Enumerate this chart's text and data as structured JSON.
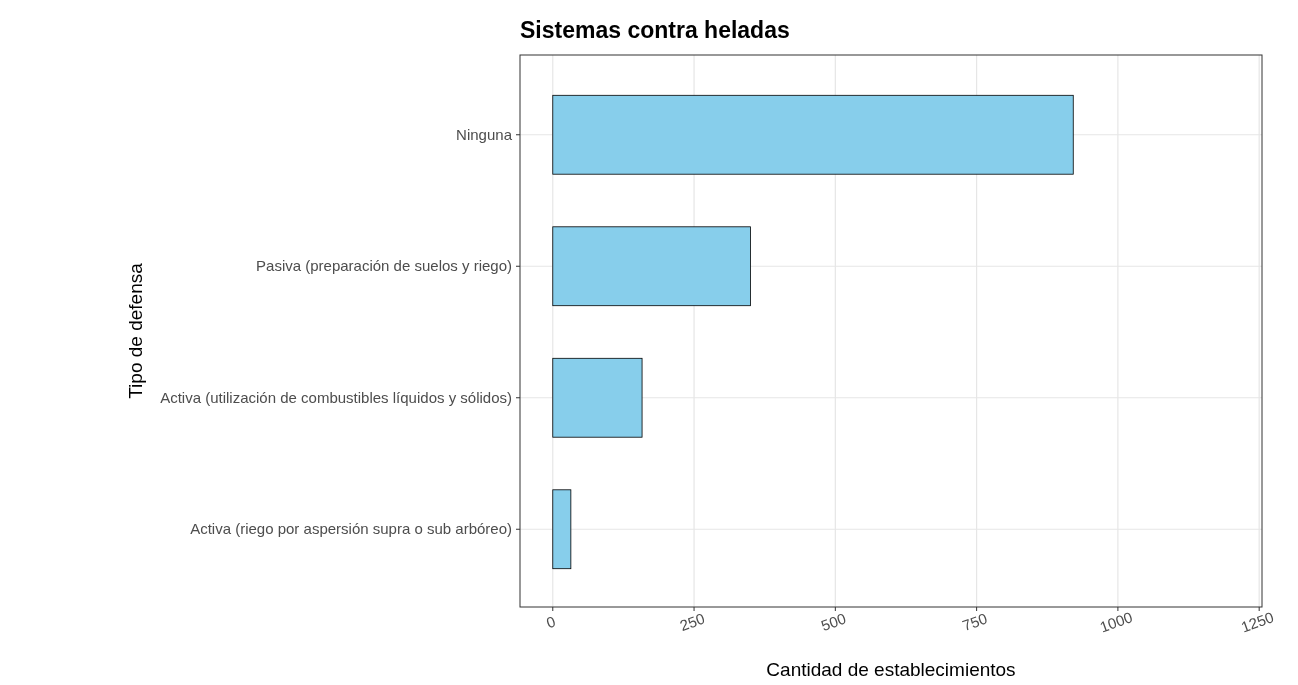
{
  "chart_data": {
    "type": "bar",
    "orientation": "horizontal",
    "title": "Sistemas contra heladas",
    "xlabel": "Cantidad de establecimientos",
    "ylabel": "Tipo de defensa",
    "categories": [
      "Ninguna",
      "Pasiva (preparación de suelos y riego)",
      "Activa (utilización de combustibles líquidos y sólidos)",
      "Activa (riego por aspersión supra o sub arbóreo)"
    ],
    "values": [
      921,
      350,
      158,
      32
    ],
    "color": "#87ceeb",
    "xlim": [
      -58,
      1255
    ],
    "xticks": [
      0,
      250,
      500,
      750,
      1000,
      1250
    ],
    "grid": true
  }
}
